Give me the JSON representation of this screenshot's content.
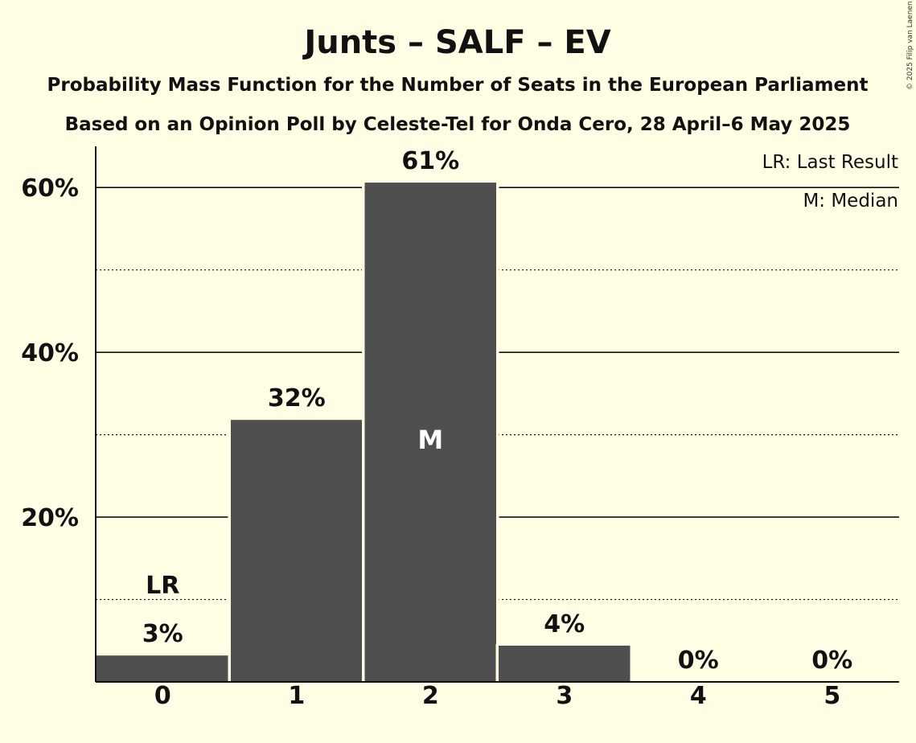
{
  "title": "Junts – SALF – EV",
  "subtitle1": "Probability Mass Function for the Number of Seats in the European Parliament",
  "subtitle2": "Based on an Opinion Poll by Celeste-Tel for Onda Cero, 28 April–6 May 2025",
  "copyright": "© 2025 Filip van Laenen",
  "legend": {
    "lr": "LR: Last Result",
    "median": "M: Median"
  },
  "colors": {
    "background": "#FFFDE3",
    "bar": "#4F4F4F",
    "text": "#111111"
  },
  "chart_data": {
    "type": "bar",
    "categories": [
      "0",
      "1",
      "2",
      "3",
      "4",
      "5"
    ],
    "values": [
      3.2,
      31.8,
      60.6,
      4.4,
      0,
      0
    ],
    "data_labels": [
      "3%",
      "32%",
      "61%",
      "4%",
      "0%",
      "0%"
    ],
    "ylim": [
      0,
      65
    ],
    "yticks": [
      20,
      40,
      60
    ],
    "ytick_labels": [
      "20%",
      "40%",
      "60%"
    ],
    "minor_gridlines": [
      10,
      30,
      50
    ],
    "last_result_category": "0",
    "last_result_label": "LR",
    "median_category": "2",
    "median_label": "M",
    "grid": true,
    "legend_position": "top-right"
  }
}
